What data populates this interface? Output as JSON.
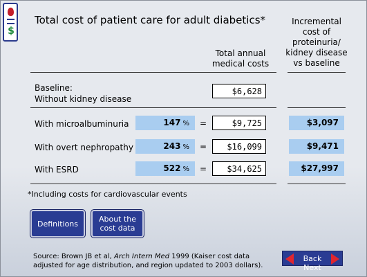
{
  "title": "Total cost of patient care for adult diabetics*",
  "headers": {
    "total": "Total annual medical costs",
    "incremental": "Incremental cost of proteinuria/ kidney disease vs baseline"
  },
  "baseline": {
    "label_line1": "Baseline:",
    "label_line2": "Without kidney disease",
    "cost": "$6,628"
  },
  "rows": [
    {
      "label": "With microalbuminuria",
      "pct": "147",
      "unit": "%",
      "eq": "=",
      "cost": "$9,725",
      "incr": "$3,097"
    },
    {
      "label": "With overt nephropathy",
      "pct": "243",
      "unit": "%",
      "eq": "=",
      "cost": "$16,099",
      "incr": "$9,471"
    },
    {
      "label": "With ESRD",
      "pct": "522",
      "unit": "%",
      "eq": "=",
      "cost": "$34,625",
      "incr": "$27,997"
    }
  ],
  "footnote": "*Including costs for cardiovascular events",
  "buttons": {
    "definitions": "Definitions",
    "about": "About the cost data"
  },
  "source": {
    "prefix": "Source: Brown JB et al, ",
    "journal": "Arch Intern Med",
    "suffix": " 1999 (Kaiser cost data adjusted for age distribution, and region updated to 2003 dollars)."
  },
  "nav": {
    "label": "Back Next"
  },
  "colors": {
    "accent_blue": "#2a3c93",
    "highlight": "#a9cdf0",
    "arrow_red": "#e0262f"
  }
}
